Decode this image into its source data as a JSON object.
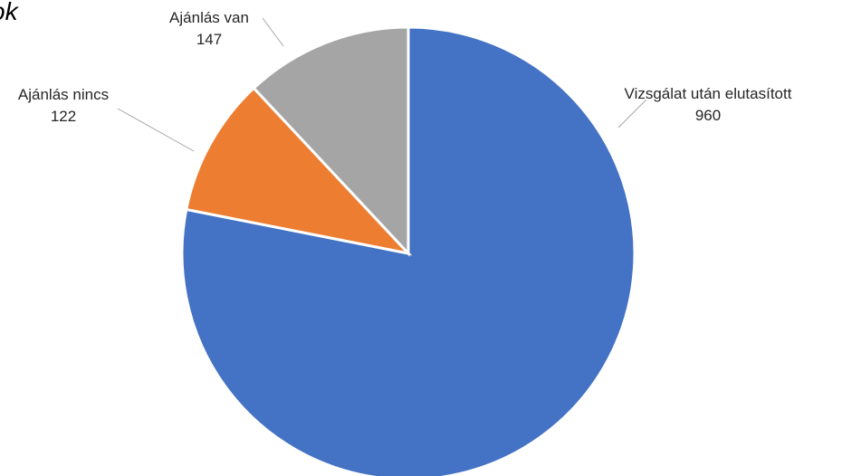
{
  "chart_data": {
    "type": "pie",
    "title": "ok",
    "categories": [
      "Vizsgálat után elutasított",
      "Ajánlás nincs",
      "Ajánlás van"
    ],
    "values": [
      960,
      122,
      147
    ],
    "colors": [
      "#4472c4",
      "#ed7d31",
      "#a5a5a5"
    ],
    "start_angle": "12 o'clock",
    "direction": "clockwise",
    "legend": "none",
    "data_labels": "category and value, outside with leader lines"
  }
}
